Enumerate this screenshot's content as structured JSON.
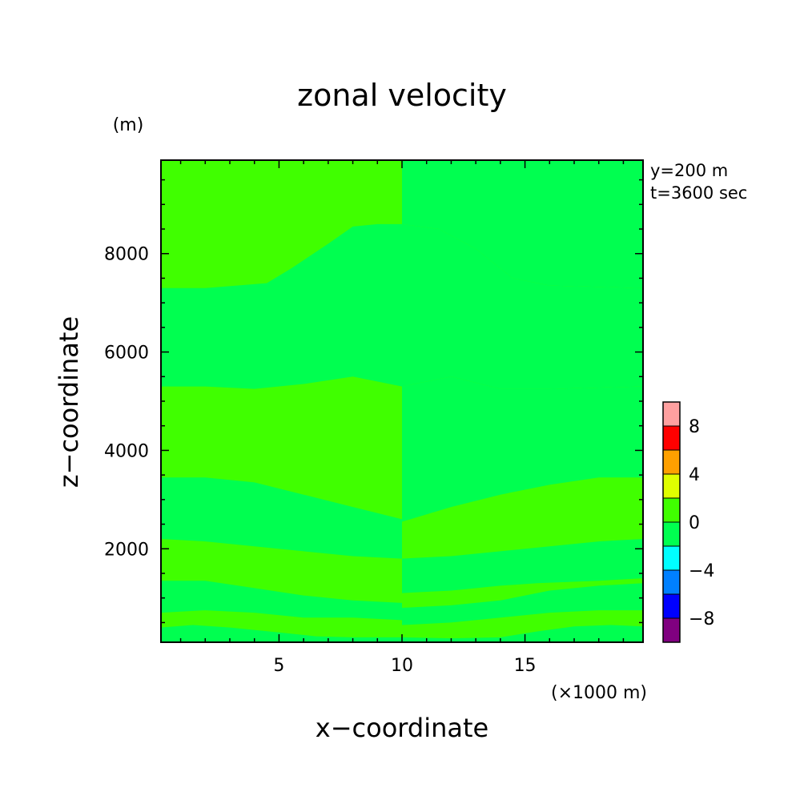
{
  "chart_data": {
    "type": "heatmap",
    "title": "zonal velocity",
    "xlabel": "x−coordinate",
    "ylabel": "z−coordinate",
    "x_unit": "(×1000 m)",
    "y_unit": "(m)",
    "xlim": [
      0.2,
      19.8
    ],
    "ylim": [
      100,
      9900
    ],
    "x_ticks": [
      5,
      10,
      15
    ],
    "y_ticks": [
      2000,
      4000,
      6000,
      8000
    ],
    "annotations": [
      "y=200 m",
      "t=3600 sec"
    ],
    "colorbar": {
      "levels": [
        -10,
        -8,
        -6,
        -4,
        -2,
        0,
        2,
        4,
        6,
        8,
        10
      ],
      "colors": [
        "#800080",
        "#0000ff",
        "#0080ff",
        "#00ffff",
        "#00ff50",
        "#40ff00",
        "#e0ff00",
        "#ffa000",
        "#ff0000",
        "#ffa0a0"
      ],
      "tick_labels": [
        "−8",
        "−4",
        "0",
        "4",
        "8"
      ],
      "tick_values": [
        -8,
        -4,
        0,
        4,
        8
      ]
    },
    "background_band_color": "#40ff00",
    "contour_bands": [
      {
        "color": "#00ff50",
        "left": {
          "top": [
            [
              0.2,
              400
            ],
            [
              1.5,
              450
            ],
            [
              3,
              400
            ],
            [
              5,
              300
            ],
            [
              6.5,
              220
            ],
            [
              8,
              200
            ],
            [
              10,
              200
            ]
          ],
          "bottom": [
            [
              0.2,
              100
            ],
            [
              10,
              100
            ]
          ]
        },
        "right": {
          "top": [
            [
              10,
              200
            ],
            [
              12,
              180
            ],
            [
              14,
              200
            ],
            [
              15.5,
              320
            ],
            [
              17,
              420
            ],
            [
              18.5,
              450
            ],
            [
              19.8,
              420
            ]
          ],
          "bottom": [
            [
              10,
              100
            ],
            [
              19.8,
              100
            ]
          ]
        }
      },
      {
        "color": "#00ff50",
        "left": {
          "top": [
            [
              0.2,
              1350
            ],
            [
              2,
              1350
            ],
            [
              4,
              1200
            ],
            [
              6,
              1050
            ],
            [
              8,
              950
            ],
            [
              10,
              900
            ]
          ],
          "bottom": [
            [
              0.2,
              700
            ],
            [
              2,
              750
            ],
            [
              4,
              700
            ],
            [
              6,
              600
            ],
            [
              8,
              600
            ],
            [
              10,
              550
            ]
          ]
        },
        "right": {
          "top": [
            [
              10,
              800
            ],
            [
              12,
              850
            ],
            [
              14,
              950
            ],
            [
              16,
              1150
            ],
            [
              18,
              1250
            ],
            [
              19.8,
              1300
            ]
          ],
          "bottom": [
            [
              10,
              450
            ],
            [
              12,
              500
            ],
            [
              14,
              600
            ],
            [
              16,
              700
            ],
            [
              18,
              750
            ],
            [
              19.8,
              750
            ]
          ]
        }
      },
      {
        "color": "#00ff50",
        "left": {
          "top": [
            [
              0.2,
              3450
            ],
            [
              2,
              3450
            ],
            [
              4,
              3350
            ],
            [
              6,
              3100
            ],
            [
              8,
              2850
            ],
            [
              10,
              2600
            ]
          ],
          "bottom": [
            [
              0.2,
              2200
            ],
            [
              2,
              2150
            ],
            [
              4,
              2050
            ],
            [
              6,
              1950
            ],
            [
              8,
              1850
            ],
            [
              10,
              1800
            ]
          ]
        },
        "right": {
          "top": [
            [
              10,
              1800
            ],
            [
              12,
              1850
            ],
            [
              14,
              1950
            ],
            [
              16,
              2050
            ],
            [
              18,
              2150
            ],
            [
              19.8,
              2200
            ]
          ],
          "bottom": [
            [
              10,
              1100
            ],
            [
              12,
              1150
            ],
            [
              14,
              1250
            ],
            [
              15.5,
              1300
            ],
            [
              18,
              1350
            ],
            [
              19.8,
              1400
            ]
          ]
        }
      },
      {
        "color": "#00ff50",
        "left": {
          "top": [
            [
              0.2,
              7300
            ],
            [
              2,
              7300
            ],
            [
              4.5,
              7400
            ],
            [
              5.5,
              7700
            ],
            [
              7,
              8200
            ],
            [
              8,
              8550
            ],
            [
              9,
              8600
            ],
            [
              10,
              8600
            ]
          ],
          "bottom": [
            [
              0.2,
              5300
            ],
            [
              2,
              5300
            ],
            [
              4,
              5250
            ],
            [
              6,
              5350
            ],
            [
              8,
              5500
            ],
            [
              10,
              5300
            ]
          ]
        },
        "right": {
          "top": [
            [
              10,
              8600
            ],
            [
              11.5,
              8500
            ],
            [
              13,
              8100
            ],
            [
              14.5,
              7500
            ],
            [
              16,
              7350
            ],
            [
              19.8,
              7300
            ]
          ],
          "bottom": [
            [
              10,
              5300
            ],
            [
              12,
              5500
            ],
            [
              14,
              5250
            ],
            [
              16,
              5250
            ],
            [
              19.8,
              5300
            ]
          ]
        }
      },
      {
        "color": "#00ff50",
        "left": {
          "top": [],
          "bottom": []
        },
        "right": {
          "top": [
            [
              10,
              2550
            ],
            [
              12,
              2850
            ],
            [
              14,
              3100
            ],
            [
              16,
              3300
            ],
            [
              18,
              3450
            ],
            [
              19.8,
              3450
            ]
          ],
          "bottom": [
            [
              10,
              5300
            ],
            [
              12,
              5500
            ],
            [
              14,
              5250
            ],
            [
              16,
              5250
            ],
            [
              19.8,
              5300
            ]
          ],
          "region": "between"
        }
      },
      {
        "color": "#00ff50",
        "left": {
          "top": [],
          "bottom": []
        },
        "right": {
          "top": [
            [
              10,
              9900
            ],
            [
              19.8,
              9900
            ]
          ],
          "bottom": [
            [
              10,
              8600
            ],
            [
              11.5,
              8500
            ],
            [
              13,
              8100
            ],
            [
              14.5,
              7500
            ],
            [
              16,
              7350
            ],
            [
              19.8,
              7300
            ]
          ],
          "region": "between"
        }
      }
    ]
  }
}
